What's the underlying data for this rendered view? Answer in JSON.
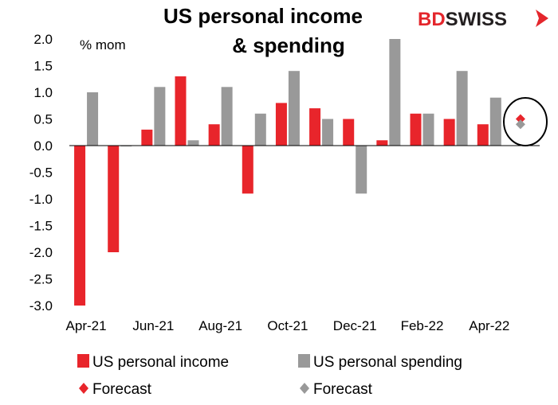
{
  "brand": {
    "part1": "BD",
    "part2": "SWISS",
    "color": "#e4262c"
  },
  "chart_data": {
    "type": "bar",
    "title_lines": [
      "US personal income",
      "& spending"
    ],
    "unit_label": "% mom",
    "categories": [
      "Apr-21",
      "May-21",
      "Jun-21",
      "Jul-21",
      "Aug-21",
      "Sep-21",
      "Oct-21",
      "Nov-21",
      "Dec-21",
      "Jan-22",
      "Feb-22",
      "Mar-22",
      "Apr-22",
      "May-22"
    ],
    "x_tick_labels": [
      {
        "index": 0,
        "label": "Apr-21"
      },
      {
        "index": 2,
        "label": "Jun-21"
      },
      {
        "index": 4,
        "label": "Aug-21"
      },
      {
        "index": 6,
        "label": "Oct-21"
      },
      {
        "index": 8,
        "label": "Dec-21"
      },
      {
        "index": 10,
        "label": "Feb-22"
      },
      {
        "index": 12,
        "label": "Apr-22"
      }
    ],
    "series": [
      {
        "name": "US personal income",
        "color": "#e8252b",
        "values": [
          -3.0,
          -2.0,
          0.3,
          1.3,
          0.4,
          -0.9,
          0.8,
          0.7,
          0.5,
          0.1,
          0.6,
          0.5,
          0.4,
          null
        ]
      },
      {
        "name": "US personal spending",
        "color": "#999999",
        "values": [
          1.0,
          0.0,
          1.1,
          0.1,
          1.1,
          0.6,
          1.4,
          0.5,
          -0.9,
          2.0,
          0.6,
          1.4,
          0.9,
          null
        ]
      }
    ],
    "forecast": [
      {
        "name": "Forecast",
        "series": "US personal income",
        "category": "May-22",
        "value": 0.5,
        "color": "#e8252b"
      },
      {
        "name": "Forecast",
        "series": "US personal spending",
        "category": "May-22",
        "value": 0.4,
        "color": "#999999"
      }
    ],
    "ylim": [
      -3.0,
      2.0
    ],
    "yticks": [
      "2.0",
      "1.5",
      "1.0",
      "0.5",
      "0.0",
      "-0.5",
      "-1.0",
      "-1.5",
      "-2.0",
      "-2.5",
      "-3.0"
    ],
    "ytick_values": [
      2.0,
      1.5,
      1.0,
      0.5,
      0.0,
      -0.5,
      -1.0,
      -1.5,
      -2.0,
      -2.5,
      -3.0
    ],
    "grid": false,
    "legend_position": "bottom",
    "annotation": "circle around May-22 forecasts"
  }
}
